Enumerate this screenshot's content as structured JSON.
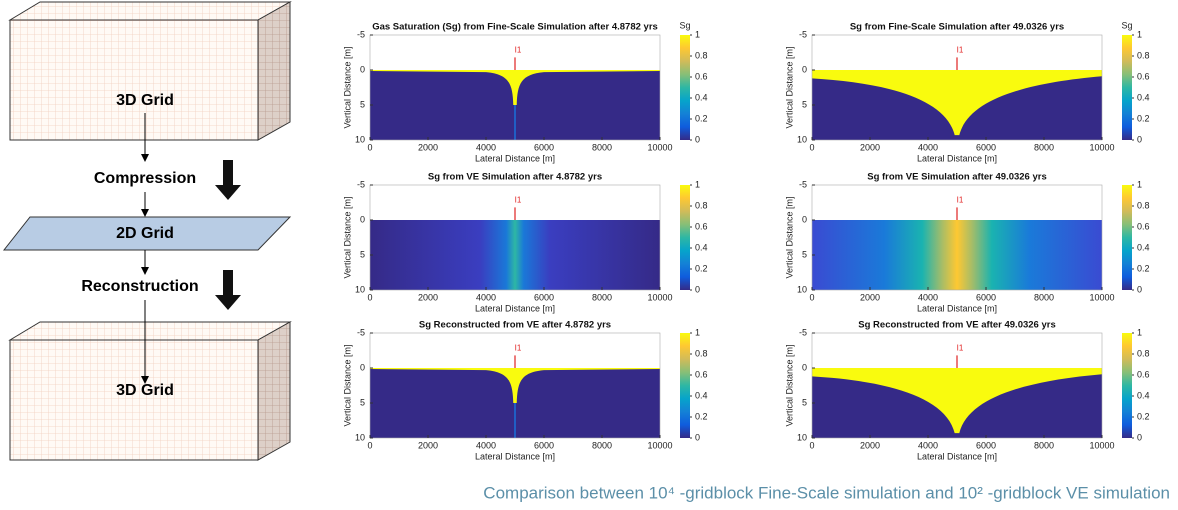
{
  "diagram": {
    "top_box": "3D Grid",
    "step_1": "Compression",
    "middle_box": "2D Grid",
    "step_2": "Reconstruction",
    "bottom_box": "3D Grid"
  },
  "chart_data": [
    {
      "type": "heatmap",
      "title": "Gas Saturation (Sg) from Fine-Scale Simulation after 4.8782 yrs",
      "xlabel": "Lateral Distance [m]",
      "ylabel": "Vertical Distance [m]",
      "xlim": [
        0,
        10000
      ],
      "ylim": [
        -5,
        10
      ],
      "xticks": [
        0,
        2000,
        4000,
        6000,
        8000,
        10000
      ],
      "yticks": [
        -5,
        0,
        5,
        10
      ],
      "colorbar_label": "Sg",
      "colorbar_ticks": [
        0,
        0.2,
        0.4,
        0.6,
        0.8,
        1
      ],
      "annotation": "I1"
    },
    {
      "type": "heatmap",
      "title": "Sg from Fine-Scale Simulation after 49.0326 yrs",
      "xlabel": "Lateral Distance [m]",
      "ylabel": "Vertical Distance [m]",
      "xlim": [
        0,
        10000
      ],
      "ylim": [
        -5,
        10
      ],
      "xticks": [
        0,
        2000,
        4000,
        6000,
        8000,
        10000
      ],
      "yticks": [
        -5,
        0,
        5,
        10
      ],
      "colorbar_label": "Sg",
      "colorbar_ticks": [
        0,
        0.2,
        0.4,
        0.6,
        0.8,
        1
      ],
      "annotation": "I1"
    },
    {
      "type": "heatmap",
      "title": "Sg from VE Simulation after 4.8782 yrs",
      "xlabel": "Lateral Distance [m]",
      "ylabel": "Vertical Distance [m]",
      "xlim": [
        0,
        10000
      ],
      "ylim": [
        -5,
        10
      ],
      "xticks": [
        0,
        2000,
        4000,
        6000,
        8000,
        10000
      ],
      "yticks": [
        -5,
        0,
        5,
        10
      ],
      "colorbar_ticks": [
        0,
        0.2,
        0.4,
        0.6,
        0.8,
        1
      ],
      "annotation": "I1"
    },
    {
      "type": "heatmap",
      "title": "Sg from VE Simulation after 49.0326 yrs",
      "xlabel": "Lateral Distance [m]",
      "ylabel": "Vertical Distance [m]",
      "xlim": [
        0,
        10000
      ],
      "ylim": [
        -5,
        10
      ],
      "xticks": [
        0,
        2000,
        4000,
        6000,
        8000,
        10000
      ],
      "yticks": [
        -5,
        0,
        5,
        10
      ],
      "colorbar_ticks": [
        0,
        0.2,
        0.4,
        0.6,
        0.8,
        1
      ],
      "annotation": "I1"
    },
    {
      "type": "heatmap",
      "title": "Sg Reconstructed from VE after 4.8782 yrs",
      "xlabel": "Lateral Distance [m]",
      "ylabel": "Vertical Distance [m]",
      "xlim": [
        0,
        10000
      ],
      "ylim": [
        -5,
        10
      ],
      "xticks": [
        0,
        2000,
        4000,
        6000,
        8000,
        10000
      ],
      "yticks": [
        -5,
        0,
        5,
        10
      ],
      "colorbar_ticks": [
        0,
        0.2,
        0.4,
        0.6,
        0.8,
        1
      ],
      "annotation": "I1"
    },
    {
      "type": "heatmap",
      "title": "Sg Reconstructed from VE after 49.0326 yrs",
      "xlabel": "Lateral Distance [m]",
      "ylabel": "Vertical Distance [m]",
      "xlim": [
        0,
        10000
      ],
      "ylim": [
        -5,
        10
      ],
      "xticks": [
        0,
        2000,
        4000,
        6000,
        8000,
        10000
      ],
      "yticks": [
        -5,
        0,
        5,
        10
      ],
      "colorbar_ticks": [
        0,
        0.2,
        0.4,
        0.6,
        0.8,
        1
      ],
      "annotation": "I1"
    }
  ],
  "caption": "Comparison between 10⁴ -gridblock Fine-Scale simulation and 10² -gridblock VE simulation"
}
